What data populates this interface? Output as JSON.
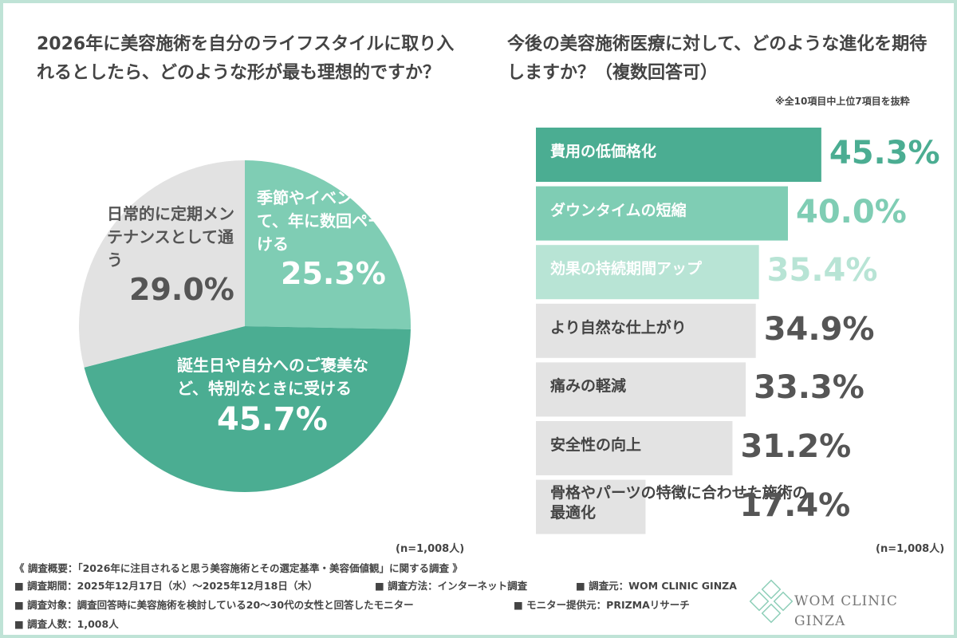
{
  "chart_data": [
    {
      "type": "pie",
      "title": "2026年に美容施術を自分のライフスタイルに取り入れるとしたら、どのような形が最も理想的ですか？",
      "categories": [
        "季節やイベントに合わせて、年に数回ペースで受ける",
        "誕生日や自分へのご褒美など、特別なときに受ける",
        "日常的に定期メンテナンスとして通う"
      ],
      "values": [
        25.3,
        45.7,
        29.0
      ],
      "value_labels": [
        "25.3%",
        "45.7%",
        "29.0%"
      ],
      "colors": [
        "#7fcdb4",
        "#4bad92",
        "#e2e2e2"
      ],
      "text_colors": [
        "#ffffff",
        "#ffffff",
        "#555555"
      ],
      "note": "(n=1,008人)"
    },
    {
      "type": "hbar",
      "title": "今後の美容施術医療に対して、どのような進化を期待しますか？（複数回答可）",
      "subtitle": "※全10項目中上位7項目を抜粋",
      "categories": [
        "費用の低価格化",
        "ダウンタイムの短縮",
        "効果の持続期間アップ",
        "より自然な仕上がり",
        "痛みの軽減",
        "安全性の向上",
        "骨格やパーツの特徴に合わせた施術の最適化"
      ],
      "values": [
        45.3,
        40.0,
        35.4,
        34.9,
        33.3,
        31.2,
        17.4
      ],
      "value_labels": [
        "45.3%",
        "40.0%",
        "35.4%",
        "34.9%",
        "33.3%",
        "31.2%",
        "17.4%"
      ],
      "colors": [
        "#4bad92",
        "#7fcdb4",
        "#b8e4d5",
        "#e3e3e3",
        "#e3e3e3",
        "#e3e3e3",
        "#e3e3e3"
      ],
      "text_colors": [
        "#ffffff",
        "#ffffff",
        "#ffffff",
        "#444444",
        "#444444",
        "#444444",
        "#444444"
      ],
      "value_label_colors": [
        "#4bad92",
        "#7fcdb4",
        "#b8e4d5",
        "#555555",
        "#555555",
        "#555555",
        "#555555"
      ],
      "note": "(n=1,008人)"
    }
  ],
  "footer": {
    "summary": "《 調査概要：「2026年に注目されると思う美容施術とその選定基準・美容価値観」に関する調査 》",
    "items": [
      "■ 調査期間：2025年12月17日（水）～2025年12月18日（木）",
      "■ 調査方法：インターネット調査",
      "■ 調査元：WOM CLINIC GINZA",
      "■ 調査対象：調査回答時に美容施術を検討している20～30代の女性と回答したモニター",
      "■ モニター提供元：PRIZMAリサーチ",
      "■ 調査人数：1,008人"
    ]
  },
  "logo": "WOM CLINIC GINZA"
}
